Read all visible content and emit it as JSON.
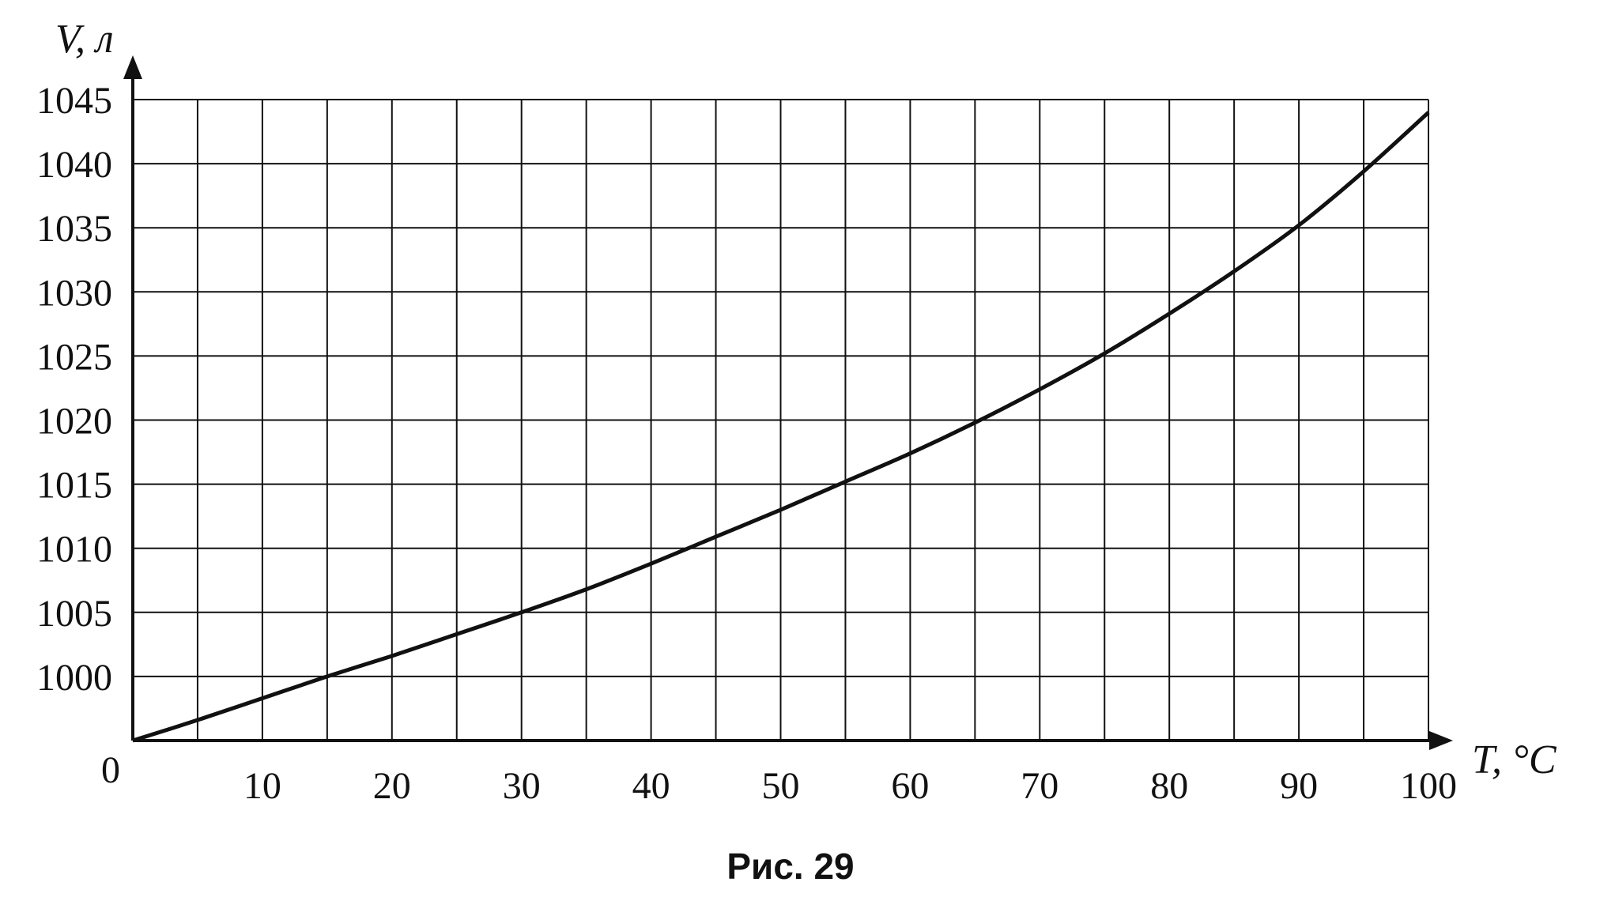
{
  "chart_data": {
    "type": "line",
    "title": "",
    "xlabel": "T, °C",
    "ylabel": "V, л",
    "xlim": [
      0,
      100
    ],
    "ylim": [
      995,
      1045
    ],
    "origin_label": "0",
    "x_ticks": [
      10,
      20,
      30,
      40,
      50,
      60,
      70,
      80,
      90,
      100
    ],
    "y_ticks": [
      1000,
      1005,
      1010,
      1015,
      1020,
      1025,
      1030,
      1035,
      1040,
      1045
    ],
    "grid": true,
    "grid_step_x": 5,
    "grid_step_y": 5,
    "series": [
      {
        "x": [
          0,
          5,
          10,
          15,
          20,
          25,
          30,
          35,
          40,
          45,
          50,
          55,
          60,
          65,
          70,
          75,
          80,
          85,
          90,
          95,
          100
        ],
        "y": [
          995,
          996.6,
          998.3,
          1000,
          1001.6,
          1003.3,
          1005,
          1006.8,
          1008.8,
          1010.9,
          1013,
          1015.2,
          1017.4,
          1019.8,
          1022.4,
          1025.2,
          1028.3,
          1031.6,
          1035.2,
          1039.4,
          1044
        ]
      }
    ],
    "colors": {
      "line": "#111111",
      "grid": "#111111",
      "background": "#ffffff"
    }
  },
  "caption": "Рис. 29"
}
